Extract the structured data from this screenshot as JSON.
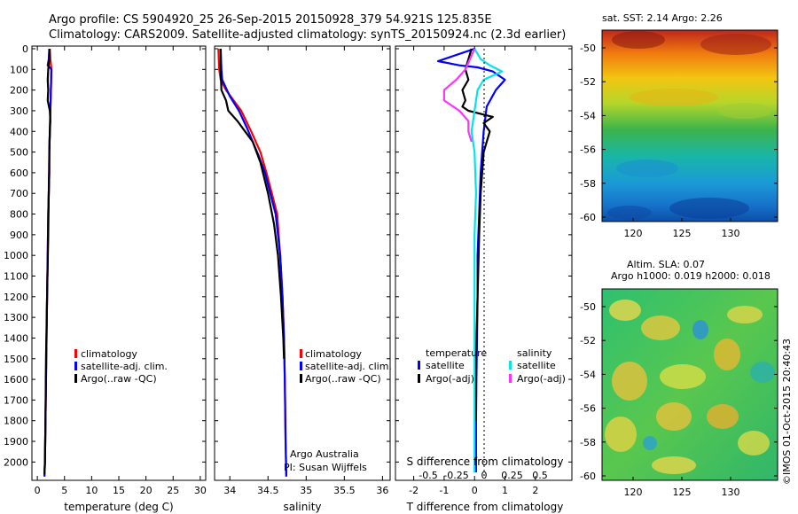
{
  "header": {
    "line1": "Argo profile: CS 5904920_25 26-Sep-2015 20150928_379 54.921S 125.835E",
    "line2": "Climatology: CARS2009. Satellite-adjusted climatology: synTS_20150924.nc (2.3d earlier)"
  },
  "colors": {
    "climatology": "#ff0000",
    "satellite": "#0000ff",
    "argo": "#000000",
    "sal_satellite": "#00e5e5",
    "sal_argo": "#ff33ff"
  },
  "legend": {
    "climatology": "climatology",
    "satellite_adj": "satellite-adj. clim.",
    "argo_raw": "Argo(..raw -QC)",
    "temperature": "temperature",
    "salinity": "salinity",
    "satellite": "satellite",
    "argo_adj": "Argo(-adj)"
  },
  "credits": {
    "institution": "Argo Australia",
    "pi": "PI: Susan Wijffels",
    "imos": "©IMOS 01-Oct-2015 20:40:43"
  },
  "maps": {
    "sst_title": "sat. SST: 2.14 Argo: 2.26",
    "sla_title1": "Altim. SLA: 0.07",
    "sla_title2": "Argo h1000: 0.019 h2000: 0.018",
    "lat_ticks": [
      "-50",
      "-52",
      "-54",
      "-56",
      "-58",
      "-60"
    ],
    "lon_ticks": [
      "120",
      "125",
      "130"
    ]
  },
  "chart_data": [
    {
      "type": "line",
      "xlabel": "temperature (deg C)",
      "ylabel": "",
      "xlim": [
        -1,
        31
      ],
      "ylim": [
        2080,
        0
      ],
      "x_ticks": [
        "0",
        "5",
        "10",
        "15",
        "20",
        "25",
        "30"
      ],
      "y_ticks": [
        "0",
        "100",
        "200",
        "300",
        "400",
        "500",
        "600",
        "700",
        "800",
        "900",
        "1000",
        "1100",
        "1200",
        "1300",
        "1400",
        "1500",
        "1600",
        "1700",
        "1800",
        "1900",
        "2000"
      ],
      "series": [
        {
          "name": "climatology",
          "color": "#ff0000",
          "x": [
            2.3,
            2.4,
            2.6,
            2.5,
            2.4,
            2.3,
            2.2,
            2.2,
            2.1,
            2.0,
            1.9,
            1.8,
            1.7,
            1.6,
            1.5,
            1.4,
            1.3
          ],
          "y": [
            0,
            50,
            100,
            200,
            300,
            400,
            500,
            600,
            700,
            800,
            1000,
            1200,
            1400,
            1600,
            1800,
            2000,
            2070
          ]
        },
        {
          "name": "satellite-adj. clim.",
          "color": "#0000ff",
          "x": [
            2.2,
            2.1,
            1.9,
            2.6,
            2.5,
            2.4,
            2.3,
            2.2,
            2.2,
            2.1,
            2.0,
            1.9,
            1.8,
            1.7,
            1.6,
            1.5,
            1.4,
            1.3
          ],
          "y": [
            0,
            50,
            80,
            100,
            200,
            300,
            400,
            500,
            600,
            700,
            800,
            1000,
            1200,
            1400,
            1600,
            1800,
            2000,
            2070
          ]
        },
        {
          "name": "Argo(..raw -QC)",
          "color": "#000000",
          "x": [
            2.2,
            2.2,
            2.0,
            1.9,
            2.0,
            1.9,
            2.3,
            2.4,
            2.3,
            2.2,
            2.1,
            2.0,
            1.8,
            1.6,
            1.5,
            1.4,
            1.3
          ],
          "y": [
            0,
            50,
            100,
            150,
            200,
            250,
            300,
            350,
            400,
            500,
            700,
            900,
            1200,
            1500,
            1800,
            2000,
            2060
          ]
        }
      ]
    },
    {
      "type": "line",
      "xlabel": "salinity",
      "ylabel": "",
      "xlim": [
        33.8,
        36.1
      ],
      "ylim": [
        2080,
        0
      ],
      "x_ticks": [
        "34",
        "34.5",
        "35",
        "35.5",
        "36"
      ],
      "series": [
        {
          "name": "climatology",
          "color": "#ff0000",
          "x": [
            33.85,
            33.86,
            33.88,
            33.95,
            34.05,
            34.15,
            34.28,
            34.4,
            34.48,
            34.55,
            34.62,
            34.66,
            34.69,
            34.71,
            34.72,
            34.73,
            34.74
          ],
          "y": [
            0,
            100,
            150,
            200,
            250,
            300,
            400,
            500,
            600,
            700,
            800,
            1000,
            1200,
            1400,
            1600,
            1900,
            2070
          ]
        },
        {
          "name": "satellite-adj. clim.",
          "color": "#0000ff",
          "x": [
            33.88,
            33.89,
            33.9,
            34.0,
            34.12,
            34.22,
            34.3,
            34.38,
            34.46,
            34.53,
            34.6,
            34.66,
            34.69,
            34.71,
            34.72,
            34.73,
            34.74
          ],
          "y": [
            0,
            100,
            150,
            230,
            300,
            380,
            450,
            520,
            600,
            700,
            800,
            1000,
            1200,
            1400,
            1600,
            1900,
            2070
          ]
        },
        {
          "name": "Argo(..raw -QC)",
          "color": "#000000",
          "x": [
            33.88,
            33.88,
            33.89,
            33.95,
            33.98,
            34.1,
            34.2,
            34.3,
            34.4,
            34.5,
            34.58,
            34.63,
            34.67,
            34.7,
            34.71
          ],
          "y": [
            0,
            100,
            200,
            250,
            300,
            350,
            400,
            450,
            550,
            700,
            850,
            1000,
            1200,
            1400,
            1500
          ]
        }
      ]
    },
    {
      "type": "line",
      "xlabel": "T difference from climatology",
      "ylabel": "",
      "secondary_xlabel": "S difference from climatology",
      "xlim": [
        -2.6,
        3.2
      ],
      "ylim": [
        2080,
        0
      ],
      "x_ticks": [
        "-2",
        "-1",
        "0",
        "1",
        "2"
      ],
      "secondary_x_ticks": [
        "-0.5",
        "-0.25",
        "0",
        "0.25",
        "0.5"
      ],
      "series": [
        {
          "name": "temperature satellite",
          "color": "#0000ff",
          "x": [
            0,
            -0.4,
            -1.2,
            -0.5,
            0.1,
            0.6,
            1.0,
            0.7,
            0.4,
            0.3,
            0.2,
            0.15,
            0.1,
            0.1,
            0.08,
            0.06,
            0.05,
            0.05
          ],
          "y": [
            0,
            20,
            60,
            80,
            90,
            110,
            150,
            200,
            280,
            400,
            600,
            800,
            1000,
            1200,
            1400,
            1600,
            1800,
            2050
          ]
        },
        {
          "name": "temperature Argo(-adj)",
          "color": "#000000",
          "x": [
            -0.1,
            -0.2,
            -0.3,
            -0.2,
            -0.4,
            -0.3,
            -0.4,
            -0.2,
            0.6,
            0.3,
            0.5,
            0.3,
            0.2,
            0.15,
            0.1,
            0.05,
            0.05
          ],
          "y": [
            0,
            50,
            100,
            150,
            200,
            250,
            280,
            300,
            330,
            360,
            400,
            500,
            700,
            900,
            1200,
            1500,
            1800
          ]
        },
        {
          "name": "salinity satellite",
          "color": "#00e5e5",
          "x": [
            0,
            0.2,
            0.5,
            0.9,
            0.3,
            0.1,
            0.0,
            -0.1,
            0.0,
            0.05,
            0.0,
            0.0,
            0.0,
            0.0,
            0.0,
            0.0
          ],
          "y": [
            0,
            50,
            80,
            110,
            150,
            200,
            300,
            400,
            500,
            700,
            900,
            1100,
            1300,
            1500,
            1800,
            2050
          ]
        },
        {
          "name": "salinity Argo(-adj)",
          "color": "#ff33ff",
          "x": [
            0,
            -0.3,
            -0.6,
            -1.0,
            -1.0,
            -0.5,
            -0.2,
            -0.2,
            -0.1
          ],
          "y": [
            0,
            100,
            150,
            200,
            250,
            300,
            350,
            400,
            450
          ]
        }
      ]
    }
  ]
}
